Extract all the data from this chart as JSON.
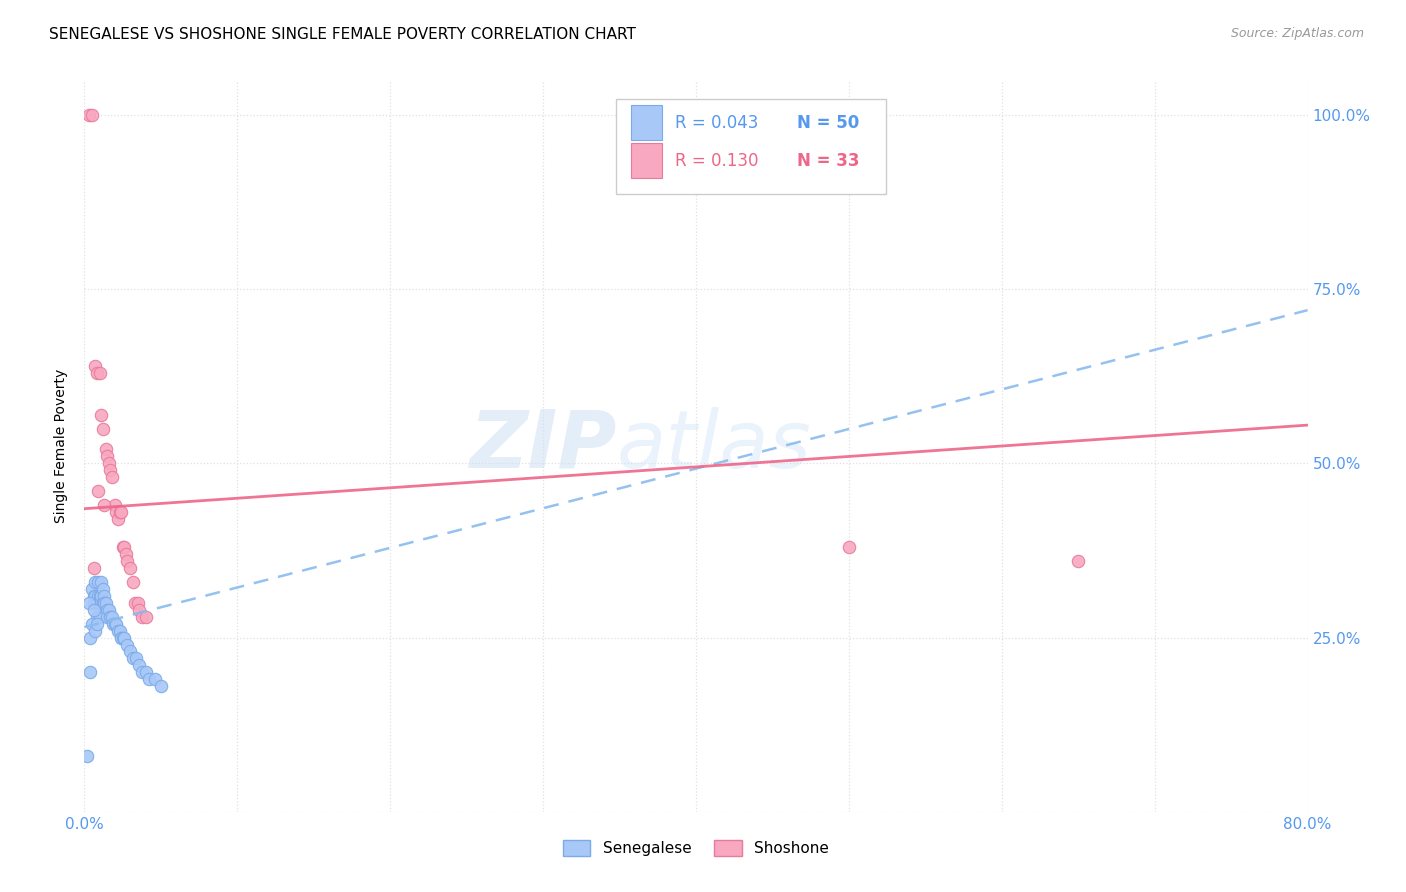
{
  "title": "SENEGALESE VS SHOSHONE SINGLE FEMALE POVERTY CORRELATION CHART",
  "source": "Source: ZipAtlas.com",
  "ylabel": "Single Female Poverty",
  "xlim": [
    0.0,
    0.8
  ],
  "ylim": [
    0.0,
    1.05
  ],
  "ytick_labels": [
    "",
    "25.0%",
    "50.0%",
    "75.0%",
    "100.0%"
  ],
  "ytick_values": [
    0.0,
    0.25,
    0.5,
    0.75,
    1.0
  ],
  "xtick_labels": [
    "0.0%",
    "",
    "",
    "",
    "",
    "",
    "",
    "",
    "80.0%"
  ],
  "xtick_values": [
    0.0,
    0.1,
    0.2,
    0.3,
    0.4,
    0.5,
    0.6,
    0.7,
    0.8
  ],
  "legend_R1": "R = 0.043",
  "legend_N1": "N = 50",
  "legend_R2": "R = 0.130",
  "legend_N2": "N = 33",
  "watermark_zip": "ZIP",
  "watermark_atlas": "atlas",
  "senegalese_color": "#a8c8f8",
  "shoshone_color": "#f8a8c0",
  "senegalese_edge": "#7aaae8",
  "shoshone_edge": "#e87a9a",
  "tick_color": "#5599ee",
  "senegalese_x": [
    0.002,
    0.004,
    0.005,
    0.006,
    0.006,
    0.007,
    0.007,
    0.008,
    0.008,
    0.009,
    0.009,
    0.01,
    0.01,
    0.01,
    0.011,
    0.011,
    0.012,
    0.012,
    0.013,
    0.013,
    0.014,
    0.015,
    0.015,
    0.016,
    0.017,
    0.018,
    0.019,
    0.02,
    0.021,
    0.022,
    0.023,
    0.024,
    0.025,
    0.026,
    0.028,
    0.03,
    0.032,
    0.034,
    0.036,
    0.038,
    0.04,
    0.042,
    0.046,
    0.05,
    0.003,
    0.004,
    0.005,
    0.006,
    0.007,
    0.008
  ],
  "senegalese_y": [
    0.08,
    0.2,
    0.32,
    0.31,
    0.3,
    0.33,
    0.31,
    0.3,
    0.28,
    0.33,
    0.31,
    0.31,
    0.3,
    0.28,
    0.33,
    0.31,
    0.32,
    0.3,
    0.31,
    0.3,
    0.3,
    0.29,
    0.28,
    0.29,
    0.28,
    0.28,
    0.27,
    0.27,
    0.27,
    0.26,
    0.26,
    0.25,
    0.25,
    0.25,
    0.24,
    0.23,
    0.22,
    0.22,
    0.21,
    0.2,
    0.2,
    0.19,
    0.19,
    0.18,
    0.3,
    0.25,
    0.27,
    0.29,
    0.26,
    0.27
  ],
  "shoshone_x": [
    0.003,
    0.005,
    0.007,
    0.008,
    0.01,
    0.011,
    0.012,
    0.014,
    0.015,
    0.016,
    0.017,
    0.018,
    0.02,
    0.021,
    0.022,
    0.023,
    0.024,
    0.025,
    0.026,
    0.027,
    0.028,
    0.03,
    0.032,
    0.033,
    0.035,
    0.036,
    0.038,
    0.04,
    0.006,
    0.009,
    0.013,
    0.5,
    0.65
  ],
  "shoshone_y": [
    1.0,
    1.0,
    0.64,
    0.63,
    0.63,
    0.57,
    0.55,
    0.52,
    0.51,
    0.5,
    0.49,
    0.48,
    0.44,
    0.43,
    0.42,
    0.43,
    0.43,
    0.38,
    0.38,
    0.37,
    0.36,
    0.35,
    0.33,
    0.3,
    0.3,
    0.29,
    0.28,
    0.28,
    0.35,
    0.46,
    0.44,
    0.38,
    0.36
  ],
  "blue_trend_x": [
    0.0,
    0.8
  ],
  "blue_trend_y": [
    0.265,
    0.72
  ],
  "pink_trend_x": [
    0.0,
    0.8
  ],
  "pink_trend_y": [
    0.435,
    0.555
  ],
  "grid_color": "#e0e0e0",
  "background_color": "#ffffff",
  "title_fontsize": 11,
  "axis_label_fontsize": 10,
  "tick_fontsize": 11,
  "marker_size": 80
}
